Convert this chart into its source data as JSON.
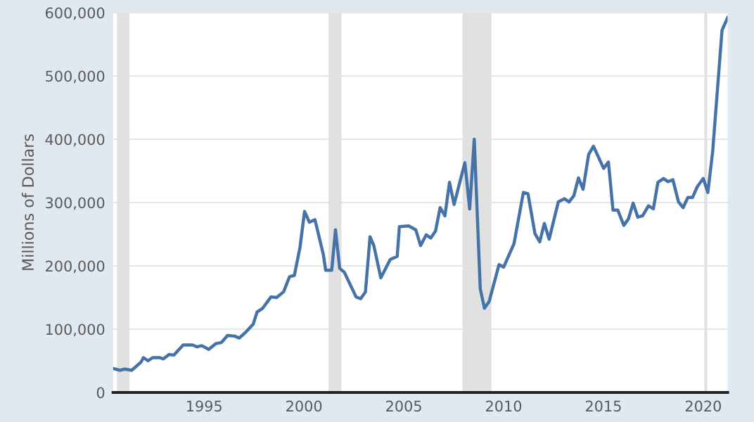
{
  "chart_data": {
    "type": "line",
    "ylabel": "Millions of Dollars",
    "x": [
      1990.44,
      1990.79,
      1991.02,
      1991.37,
      1991.84,
      1991.96,
      1992.19,
      1992.42,
      1992.78,
      1992.96,
      1993.24,
      1993.48,
      1993.95,
      1994.42,
      1994.65,
      1994.88,
      1995.23,
      1995.58,
      1995.87,
      1996.17,
      1996.52,
      1996.76,
      1997.11,
      1997.46,
      1997.65,
      1997.93,
      1998.35,
      1998.63,
      1998.98,
      1999.28,
      1999.52,
      1999.8,
      2000.03,
      2000.27,
      2000.55,
      2000.97,
      2001.09,
      2001.39,
      2001.58,
      2001.79,
      2002.02,
      2002.61,
      2002.84,
      2003.08,
      2003.31,
      2003.5,
      2003.85,
      2004.32,
      2004.67,
      2004.78,
      2005.25,
      2005.6,
      2005.84,
      2006.12,
      2006.35,
      2006.59,
      2006.82,
      2007.06,
      2007.29,
      2007.52,
      2008.06,
      2008.3,
      2008.53,
      2008.83,
      2009.04,
      2009.28,
      2009.77,
      2010.0,
      2010.52,
      2010.99,
      2011.22,
      2011.57,
      2011.81,
      2012.04,
      2012.28,
      2012.74,
      2013.05,
      2013.28,
      2013.52,
      2013.75,
      2013.98,
      2014.26,
      2014.5,
      2015.01,
      2015.25,
      2015.48,
      2015.72,
      2016.02,
      2016.25,
      2016.49,
      2016.72,
      2016.96,
      2017.26,
      2017.5,
      2017.73,
      2018.01,
      2018.24,
      2018.48,
      2018.76,
      2018.99,
      2019.23,
      2019.46,
      2019.7,
      2020.0,
      2020.23,
      2020.47,
      2020.94,
      2021.22
    ],
    "series": [
      {
        "color": "#4572a7",
        "values": [
          38000,
          35000,
          37000,
          35000,
          48000,
          55000,
          50000,
          55000,
          55000,
          53000,
          60000,
          59000,
          75000,
          75000,
          72000,
          74000,
          68000,
          77000,
          79000,
          90000,
          89000,
          86000,
          96000,
          108000,
          127000,
          133000,
          151000,
          150000,
          159000,
          183000,
          185000,
          229000,
          286000,
          269000,
          273000,
          218000,
          193000,
          193000,
          257000,
          196000,
          190000,
          151000,
          148000,
          159000,
          246000,
          232000,
          181000,
          210000,
          215000,
          262000,
          263000,
          257000,
          232000,
          249000,
          244000,
          255000,
          292000,
          279000,
          332000,
          297000,
          363000,
          290000,
          400000,
          164000,
          133000,
          144000,
          202000,
          198000,
          235000,
          316000,
          314000,
          251000,
          238000,
          267000,
          242000,
          301000,
          306000,
          301000,
          311000,
          339000,
          321000,
          376000,
          389000,
          354000,
          364000,
          288000,
          288000,
          264000,
          274000,
          299000,
          277000,
          279000,
          295000,
          290000,
          332000,
          338000,
          333000,
          336000,
          301000,
          292000,
          308000,
          308000,
          325000,
          338000,
          316000,
          380000,
          572000,
          592000
        ]
      }
    ],
    "xlim": [
      1990.44,
      2021.22
    ],
    "xticks": [
      1995,
      2000,
      2005,
      2010,
      2015,
      2020
    ],
    "ylim": [
      0,
      600000
    ],
    "yticks": [
      {
        "value": 0,
        "label": "0"
      },
      {
        "value": 100000,
        "label": "100,000"
      },
      {
        "value": 200000,
        "label": "200,000"
      },
      {
        "value": 300000,
        "label": "300,000"
      },
      {
        "value": 400000,
        "label": "400,000"
      },
      {
        "value": 500000,
        "label": "500,000"
      },
      {
        "value": 600000,
        "label": "600,000"
      }
    ],
    "grid": "y",
    "line_style": "solid",
    "marker": "none",
    "bands": [
      {
        "axis": "x",
        "from": 1990.63,
        "to": 1991.26,
        "color": "#e1e1e1"
      },
      {
        "axis": "x",
        "from": 2001.23,
        "to": 2001.88,
        "color": "#e1e1e1"
      },
      {
        "axis": "x",
        "from": 2007.94,
        "to": 2009.39,
        "color": "#e1e1e1"
      },
      {
        "axis": "x",
        "from": 2020.05,
        "to": 2020.2,
        "color": "#e1e1e1"
      }
    ]
  }
}
